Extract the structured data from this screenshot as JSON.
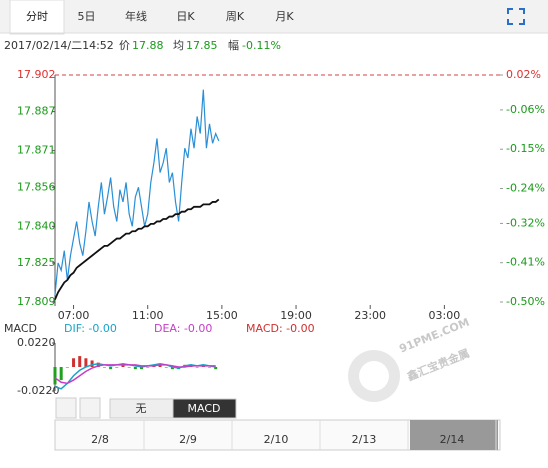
{
  "tabs": [
    "分时",
    "5日",
    "年线",
    "日K",
    "周K",
    "月K"
  ],
  "info": {
    "datetime": "2017/02/14/二14:52",
    "price_label": "价",
    "price": "17.88",
    "avg_label": "均",
    "avg": "17.85",
    "change_label": "幅",
    "change": "-0.11%"
  },
  "chart_data": [
    {
      "type": "line",
      "x": [
        0,
        10,
        20,
        30,
        40,
        50,
        60,
        70,
        80,
        90,
        100,
        110,
        120,
        130,
        140,
        150,
        160,
        170,
        180,
        190,
        200,
        210,
        220,
        230,
        240,
        250,
        260,
        270,
        280,
        290,
        300,
        310,
        320,
        330,
        340,
        350,
        360,
        370,
        380,
        390,
        400,
        410,
        420,
        430,
        440,
        450,
        460,
        470,
        480,
        490,
        500,
        510,
        520,
        530
      ],
      "series": [
        {
          "color": "#2a8fd6",
          "values": [
            17.812,
            17.825,
            17.822,
            17.83,
            17.818,
            17.828,
            17.835,
            17.842,
            17.833,
            17.828,
            17.838,
            17.85,
            17.842,
            17.836,
            17.848,
            17.858,
            17.845,
            17.852,
            17.86,
            17.848,
            17.842,
            17.855,
            17.85,
            17.858,
            17.845,
            17.84,
            17.852,
            17.856,
            17.848,
            17.84,
            17.845,
            17.858,
            17.866,
            17.876,
            17.862,
            17.866,
            17.872,
            17.858,
            17.862,
            17.85,
            17.842,
            17.858,
            17.872,
            17.868,
            17.88,
            17.872,
            17.885,
            17.878,
            17.896,
            17.872,
            17.882,
            17.874,
            17.878,
            17.875
          ]
        },
        {
          "color": "#111111",
          "values": [
            17.81,
            17.813,
            17.815,
            17.817,
            17.818,
            17.82,
            17.821,
            17.823,
            17.824,
            17.825,
            17.826,
            17.827,
            17.828,
            17.829,
            17.83,
            17.831,
            17.832,
            17.832,
            17.833,
            17.834,
            17.835,
            17.835,
            17.836,
            17.837,
            17.837,
            17.838,
            17.838,
            17.839,
            17.839,
            17.84,
            17.84,
            17.841,
            17.841,
            17.842,
            17.842,
            17.843,
            17.843,
            17.844,
            17.844,
            17.845,
            17.845,
            17.846,
            17.846,
            17.847,
            17.847,
            17.848,
            17.848,
            17.848,
            17.849,
            17.849,
            17.849,
            17.85,
            17.85,
            17.851
          ]
        }
      ],
      "xlim": [
        0,
        1440
      ],
      "xticks": [
        {
          "value": 60,
          "label": "07:00"
        },
        {
          "value": 300,
          "label": "11:00"
        },
        {
          "value": 540,
          "label": "15:00"
        },
        {
          "value": 780,
          "label": "19:00"
        },
        {
          "value": 1020,
          "label": "23:00"
        },
        {
          "value": 1260,
          "label": "03:00"
        }
      ],
      "ylim": [
        17.809,
        17.902
      ],
      "yticks": [
        17.902,
        {
          "value": 17.887,
          "label": "17.887"
        },
        17.871,
        17.856,
        {
          "value": 17.84,
          "label": "17.840"
        },
        17.825,
        17.809
      ],
      "y2lim": [
        -0.5,
        0.02
      ],
      "y2ticks": [
        {
          "value": 0.02,
          "label": "0.02%"
        },
        {
          "value": -0.06,
          "label": "-0.06%"
        },
        {
          "value": -0.15,
          "label": "-0.15%"
        },
        {
          "value": -0.24,
          "label": "-0.24%"
        },
        {
          "value": -0.32,
          "label": "-0.32%"
        },
        {
          "value": -0.41,
          "label": "-0.41%"
        },
        {
          "value": -0.5,
          "label": "-0.50%"
        }
      ]
    },
    {
      "type": "macd",
      "title": "MACD",
      "x": [
        0,
        20,
        40,
        60,
        80,
        100,
        120,
        140,
        160,
        180,
        200,
        220,
        240,
        260,
        280,
        300,
        320,
        340,
        360,
        380,
        400,
        420,
        440,
        460,
        480,
        500,
        520
      ],
      "series": [
        {
          "name": "DIF: -0.00",
          "kind": "line",
          "color": "#1aa3c8",
          "values": [
            -0.018,
            -0.02,
            -0.015,
            -0.008,
            -0.003,
            0,
            0.002,
            0.003,
            0.002,
            0.001,
            0.002,
            0.003,
            0.002,
            0.001,
            0,
            0.001,
            0.002,
            0.003,
            0.002,
            0,
            -0.001,
            0.001,
            0.002,
            0.001,
            0.002,
            0.001,
            0
          ]
        },
        {
          "name": "DEA: -0.00",
          "kind": "line",
          "color": "#c83cc8",
          "values": [
            -0.01,
            -0.014,
            -0.015,
            -0.012,
            -0.008,
            -0.004,
            -0.001,
            0.001,
            0.002,
            0.002,
            0.002,
            0.002,
            0.002,
            0.002,
            0.001,
            0.001,
            0.001,
            0.002,
            0.002,
            0.001,
            0,
            0,
            0.001,
            0.001,
            0.001,
            0.001,
            0.001
          ]
        },
        {
          "name": "MACD: -0.00",
          "kind": "bar",
          "color": "#d03030",
          "negative_color": "#1fa01f",
          "values": [
            -0.016,
            -0.012,
            0,
            0.008,
            0.01,
            0.008,
            0.006,
            0.004,
            0,
            -0.002,
            0,
            0.002,
            0,
            -0.002,
            -0.002,
            0,
            0.002,
            0.002,
            0,
            -0.002,
            -0.002,
            0.002,
            0.002,
            0,
            0.002,
            0,
            -0.002
          ]
        }
      ],
      "xlim": [
        0,
        1440
      ],
      "ylim": [
        -0.022,
        0.022
      ],
      "yticks": [
        {
          "value": 0.022,
          "label": "0.0220"
        },
        {
          "value": -0.022,
          "label": "-0.0220"
        }
      ]
    }
  ],
  "indicator_tabs": [
    "无",
    "MACD"
  ],
  "navigator": {
    "dates": [
      "2/8",
      "2/9",
      "2/10",
      "2/13",
      "2/14"
    ]
  },
  "watermark": {
    "site": "91PME.COM",
    "name": "鑫汇宝贵金属"
  }
}
